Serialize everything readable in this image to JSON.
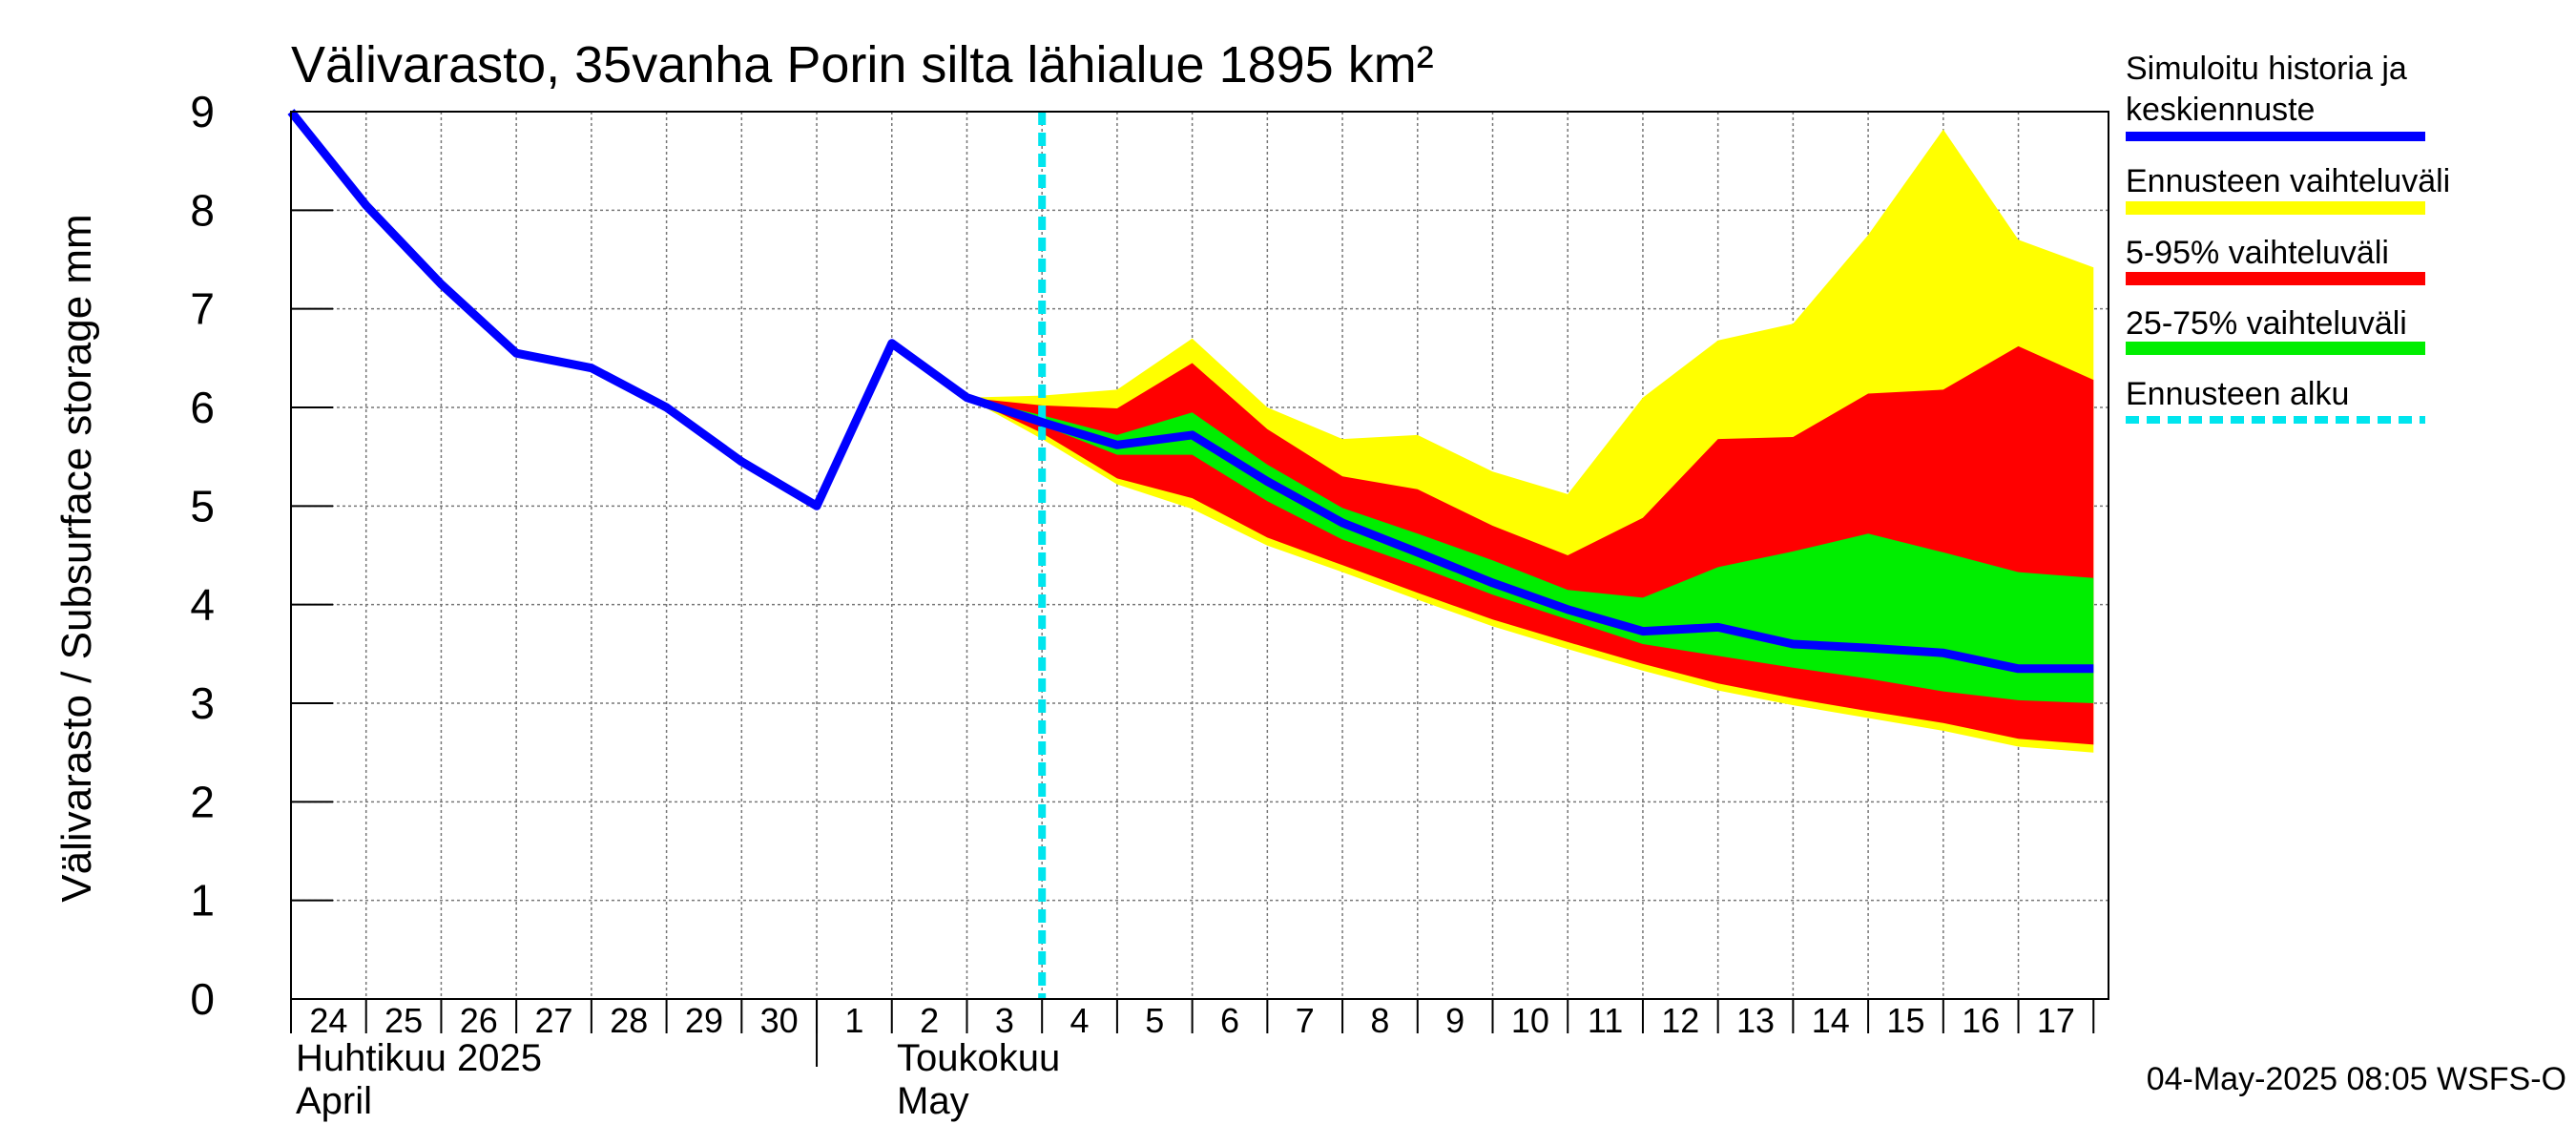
{
  "chart_data": {
    "type": "area",
    "title": "Välivarasto, 35vanha Porin silta lähialue 1895 km²",
    "ylabel": "Välivarasto / Subsurface storage  mm",
    "xlabel": "",
    "ylim": [
      0,
      9
    ],
    "y_ticks": [
      0,
      1,
      2,
      3,
      4,
      5,
      6,
      7,
      8,
      9
    ],
    "grid": true,
    "x_day_labels": [
      "24",
      "25",
      "26",
      "27",
      "28",
      "29",
      "30",
      "1",
      "2",
      "3",
      "4",
      "5",
      "6",
      "7",
      "8",
      "9",
      "10",
      "11",
      "12",
      "13",
      "14",
      "15",
      "16",
      "17"
    ],
    "month_labels": [
      {
        "fi": "Huhtikuu  2025",
        "en": "April"
      },
      {
        "fi": "Toukokuu",
        "en": "May"
      }
    ],
    "forecast_start": "2025-05-04",
    "history": {
      "name": "Simuloitu historia ja keskiennuste",
      "x": [
        "2025-04-24",
        "2025-04-25",
        "2025-04-26",
        "2025-04-27",
        "2025-04-28",
        "2025-04-29",
        "2025-04-30",
        "2025-05-01",
        "2025-05-02",
        "2025-05-03",
        "2025-05-04",
        "2025-05-05",
        "2025-05-06",
        "2025-05-07",
        "2025-05-08",
        "2025-05-09",
        "2025-05-10",
        "2025-05-11",
        "2025-05-12",
        "2025-05-13",
        "2025-05-14",
        "2025-05-15",
        "2025-05-16",
        "2025-05-17",
        "2025-05-18"
      ],
      "values": [
        9.0,
        8.05,
        7.25,
        6.55,
        6.4,
        6.0,
        5.45,
        5.0,
        6.65,
        6.1,
        5.85,
        5.62,
        5.72,
        5.25,
        4.83,
        4.53,
        4.22,
        3.95,
        3.73,
        3.77,
        3.6,
        3.56,
        3.51,
        3.35,
        3.35
      ]
    },
    "bands": {
      "x": [
        "2025-05-03",
        "2025-05-04",
        "2025-05-05",
        "2025-05-06",
        "2025-05-07",
        "2025-05-08",
        "2025-05-09",
        "2025-05-10",
        "2025-05-11",
        "2025-05-12",
        "2025-05-13",
        "2025-05-14",
        "2025-05-15",
        "2025-05-16",
        "2025-05-17",
        "2025-05-18"
      ],
      "full": {
        "name": "Ennusteen vaihteluväli",
        "upper": [
          6.1,
          6.12,
          6.18,
          6.7,
          6.0,
          5.68,
          5.72,
          5.35,
          5.12,
          6.1,
          6.68,
          6.85,
          7.75,
          8.82,
          7.7,
          7.42
        ],
        "lower": [
          6.1,
          5.68,
          5.22,
          4.97,
          4.6,
          4.33,
          4.05,
          3.78,
          3.55,
          3.33,
          3.13,
          2.98,
          2.85,
          2.72,
          2.56,
          2.5
        ]
      },
      "p5_95": {
        "name": "5-95% vaihteluväli",
        "upper": [
          6.1,
          6.02,
          5.99,
          6.45,
          5.78,
          5.3,
          5.17,
          4.8,
          4.5,
          4.88,
          5.68,
          5.7,
          6.14,
          6.18,
          6.62,
          6.28
        ],
        "lower": [
          6.1,
          5.74,
          5.28,
          5.08,
          4.68,
          4.4,
          4.12,
          3.85,
          3.62,
          3.4,
          3.2,
          3.05,
          2.92,
          2.8,
          2.64,
          2.58
        ]
      },
      "p25_75": {
        "name": "25-75% vaihteluväli",
        "upper": [
          6.1,
          5.92,
          5.72,
          5.95,
          5.42,
          4.98,
          4.72,
          4.45,
          4.15,
          4.07,
          4.38,
          4.54,
          4.72,
          4.53,
          4.33,
          4.27
        ]
      },
      "p25_75_lower": [
        6.1,
        5.82,
        5.52,
        5.52,
        5.05,
        4.66,
        4.39,
        4.1,
        3.85,
        3.6,
        3.48,
        3.36,
        3.25,
        3.12,
        3.03,
        3.0
      ]
    },
    "legend": [
      {
        "label": "Simuloitu historia ja",
        "label2": "keskiennuste",
        "color": "#0000ff",
        "style": "line"
      },
      {
        "label": "Ennusteen vaihteluväli",
        "color": "#ffff00",
        "style": "band"
      },
      {
        "label": "5-95% vaihteluväli",
        "color": "#ff0000",
        "style": "band"
      },
      {
        "label": "25-75% vaihteluväli",
        "color": "#00ee00",
        "style": "band"
      },
      {
        "label": "Ennusteen alku",
        "color": "#00e5ee",
        "style": "dashed"
      }
    ],
    "legend_position": "right",
    "colors": {
      "history": "#0000ff",
      "full": "#ffff00",
      "p5_95": "#ff0000",
      "p25_75": "#00ee00",
      "forecast_start": "#00e5ee"
    },
    "footer": "04-May-2025 08:05 WSFS-O"
  }
}
